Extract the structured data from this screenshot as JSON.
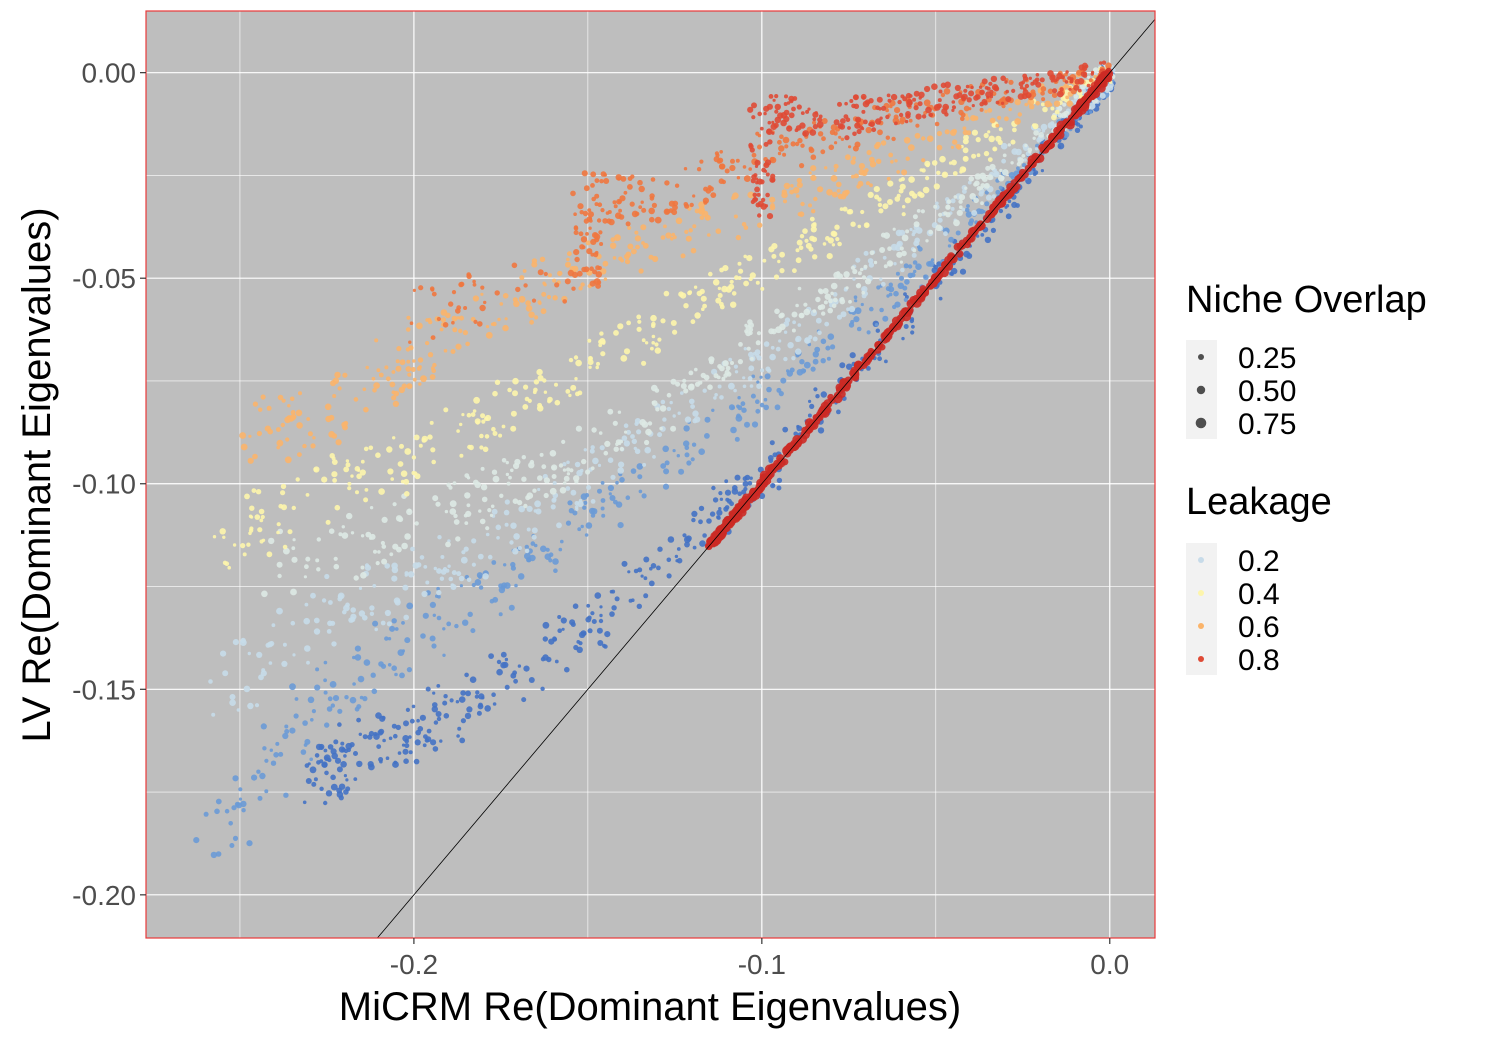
{
  "chart_data": {
    "type": "scatter",
    "xlabel": "MiCRM Re(Dominant Eigenvalues)",
    "ylabel": "LV Re(Dominant Eigenvalues)",
    "xlim": [
      -0.277,
      0.013
    ],
    "ylim": [
      -0.2105,
      0.015
    ],
    "x_ticks": [
      {
        "value": -0.2,
        "label": "-0.2"
      },
      {
        "value": -0.1,
        "label": "-0.1"
      },
      {
        "value": 0.0,
        "label": "0.0"
      }
    ],
    "y_ticks": [
      {
        "value": 0.0,
        "label": "0.00"
      },
      {
        "value": -0.05,
        "label": "-0.05"
      },
      {
        "value": -0.1,
        "label": "-0.10"
      },
      {
        "value": -0.15,
        "label": "-0.15"
      },
      {
        "value": -0.2,
        "label": "-0.20"
      }
    ],
    "grid": true,
    "reference_line": {
      "type": "identity",
      "slope": 1,
      "intercept": 0
    },
    "panel_background": "#bebebe",
    "panel_border_color": "#e8393a",
    "legends": {
      "size": {
        "title": "Niche Overlap",
        "entries": [
          {
            "label": "0.25",
            "value": 0.25
          },
          {
            "label": "0.50",
            "value": 0.5
          },
          {
            "label": "0.75",
            "value": 0.75
          }
        ]
      },
      "color": {
        "title": "Leakage",
        "entries": [
          {
            "label": "0.2",
            "value": 0.2,
            "color": "#c7dbe9"
          },
          {
            "label": "0.4",
            "value": 0.4,
            "color": "#fdf5ac"
          },
          {
            "label": "0.6",
            "value": 0.6,
            "color": "#fbb46a"
          },
          {
            "label": "0.8",
            "value": 0.8,
            "color": "#df4a35"
          }
        ]
      },
      "placement": "right"
    },
    "series": [
      {
        "leakage": 0.0,
        "color": "#4472c4",
        "slope": 1.55,
        "x_range": [
          -0.235,
          0.0
        ],
        "points": [
          [
            -0.228,
            -0.172
          ],
          [
            -0.22,
            -0.167
          ],
          [
            -0.2,
            -0.16
          ],
          [
            -0.18,
            -0.152
          ],
          [
            -0.15,
            -0.135
          ],
          [
            -0.12,
            -0.112
          ],
          [
            -0.1,
            -0.098
          ],
          [
            -0.07,
            -0.07
          ],
          [
            -0.04,
            -0.042
          ],
          [
            -0.01,
            -0.012
          ],
          [
            0.0,
            0.0
          ]
        ]
      },
      {
        "leakage": 0.1,
        "color": "#6a9ad6",
        "slope": 2.0,
        "x_range": [
          -0.26,
          0.0
        ],
        "points": [
          [
            -0.258,
            -0.188
          ],
          [
            -0.23,
            -0.153
          ],
          [
            -0.2,
            -0.138
          ],
          [
            -0.17,
            -0.12
          ],
          [
            -0.14,
            -0.103
          ],
          [
            -0.1,
            -0.079
          ],
          [
            -0.07,
            -0.058
          ],
          [
            -0.04,
            -0.036
          ],
          [
            -0.01,
            -0.01
          ],
          [
            0.0,
            0.0
          ]
        ]
      },
      {
        "leakage": 0.2,
        "color": "#c7dbe9",
        "slope": 2.8,
        "x_range": [
          -0.26,
          0.0
        ],
        "points": [
          [
            -0.255,
            -0.15
          ],
          [
            -0.22,
            -0.13
          ],
          [
            -0.19,
            -0.12
          ],
          [
            -0.16,
            -0.105
          ],
          [
            -0.13,
            -0.085
          ],
          [
            -0.1,
            -0.07
          ],
          [
            -0.07,
            -0.05
          ],
          [
            -0.04,
            -0.03
          ],
          [
            -0.01,
            -0.008
          ],
          [
            0.0,
            0.0
          ]
        ]
      },
      {
        "leakage": 0.3,
        "color": "#dde9e4",
        "slope": 3.8,
        "x_range": [
          -0.255,
          0.0
        ],
        "points": [
          [
            -0.24,
            -0.12
          ],
          [
            -0.2,
            -0.11
          ],
          [
            -0.17,
            -0.1
          ],
          [
            -0.14,
            -0.088
          ],
          [
            -0.11,
            -0.07
          ],
          [
            -0.08,
            -0.053
          ],
          [
            -0.05,
            -0.036
          ],
          [
            -0.02,
            -0.016
          ],
          [
            0.0,
            0.0
          ]
        ]
      },
      {
        "leakage": 0.4,
        "color": "#fdf5ac",
        "slope": 5.5,
        "x_range": [
          -0.26,
          0.0
        ],
        "points": [
          [
            -0.255,
            -0.113
          ],
          [
            -0.22,
            -0.1
          ],
          [
            -0.19,
            -0.09
          ],
          [
            -0.16,
            -0.076
          ],
          [
            -0.13,
            -0.062
          ],
          [
            -0.1,
            -0.047
          ],
          [
            -0.07,
            -0.034
          ],
          [
            -0.04,
            -0.02
          ],
          [
            0.0,
            0.0
          ]
        ]
      },
      {
        "leakage": 0.6,
        "color": "#fbb46a",
        "slope": 9.0,
        "x_range": [
          -0.25,
          0.0
        ],
        "points": [
          [
            -0.25,
            -0.088
          ],
          [
            -0.22,
            -0.082
          ],
          [
            -0.2,
            -0.068
          ],
          [
            -0.17,
            -0.055
          ],
          [
            -0.14,
            -0.043
          ],
          [
            -0.1,
            -0.033
          ],
          [
            -0.07,
            -0.023
          ],
          [
            -0.03,
            -0.01
          ],
          [
            0.0,
            0.0
          ]
        ]
      },
      {
        "leakage": 0.7,
        "color": "#f0773f",
        "slope": 15.0,
        "x_range": [
          -0.2,
          0.0
        ],
        "points": [
          [
            -0.2,
            -0.06
          ],
          [
            -0.15,
            -0.048
          ],
          [
            -0.15,
            -0.03
          ],
          [
            -0.13,
            -0.032
          ],
          [
            -0.1,
            -0.02
          ],
          [
            -0.07,
            -0.013
          ],
          [
            -0.04,
            -0.007
          ],
          [
            0.0,
            0.0
          ]
        ]
      },
      {
        "leakage": 0.8,
        "color": "#df4a35",
        "slope": 30.0,
        "x_range": [
          -0.115,
          0.0
        ],
        "points": [
          [
            -0.1,
            -0.035
          ],
          [
            -0.1,
            -0.01
          ],
          [
            -0.08,
            -0.012
          ],
          [
            -0.06,
            -0.008
          ],
          [
            -0.04,
            -0.005
          ],
          [
            -0.02,
            -0.003
          ],
          [
            0.0,
            0.0
          ]
        ]
      },
      {
        "leakage": 0.9,
        "color": "#cc2a25",
        "slope": 1.0,
        "x_range": [
          -0.115,
          0.0
        ],
        "points": [
          [
            -0.115,
            -0.115
          ],
          [
            -0.11,
            -0.11
          ],
          [
            -0.105,
            -0.105
          ],
          [
            -0.09,
            -0.09
          ],
          [
            -0.07,
            -0.07
          ],
          [
            -0.05,
            -0.05
          ],
          [
            -0.03,
            -0.03
          ],
          [
            -0.01,
            -0.01
          ],
          [
            0.0,
            0.0
          ]
        ]
      }
    ]
  }
}
